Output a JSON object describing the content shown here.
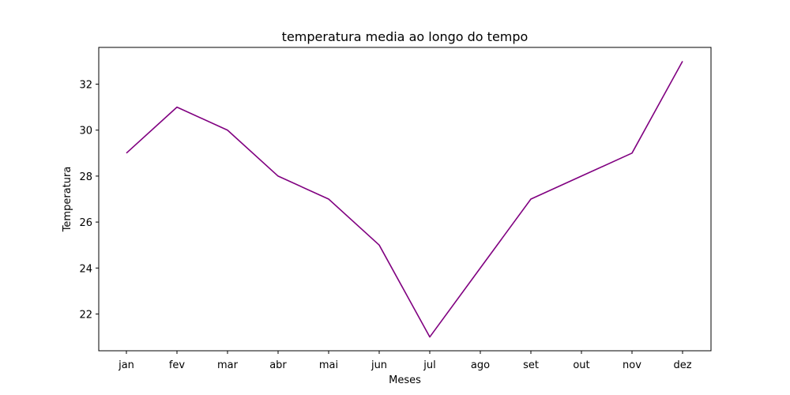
{
  "chart_data": {
    "type": "line",
    "title": "temperatura media ao longo do tempo",
    "xlabel": "Meses",
    "ylabel": "Temperatura",
    "categories": [
      "jan",
      "fev",
      "mar",
      "abr",
      "mai",
      "jun",
      "jul",
      "ago",
      "set",
      "out",
      "nov",
      "dez"
    ],
    "series": [
      {
        "color": "#800080",
        "values": [
          29,
          31,
          30,
          28,
          27,
          25,
          21,
          24,
          27,
          28,
          29,
          33
        ]
      }
    ],
    "ylim": [
      20.4,
      33.6
    ],
    "yticks": [
      22,
      24,
      26,
      28,
      30,
      32
    ],
    "grid": false,
    "legend": "none"
  }
}
